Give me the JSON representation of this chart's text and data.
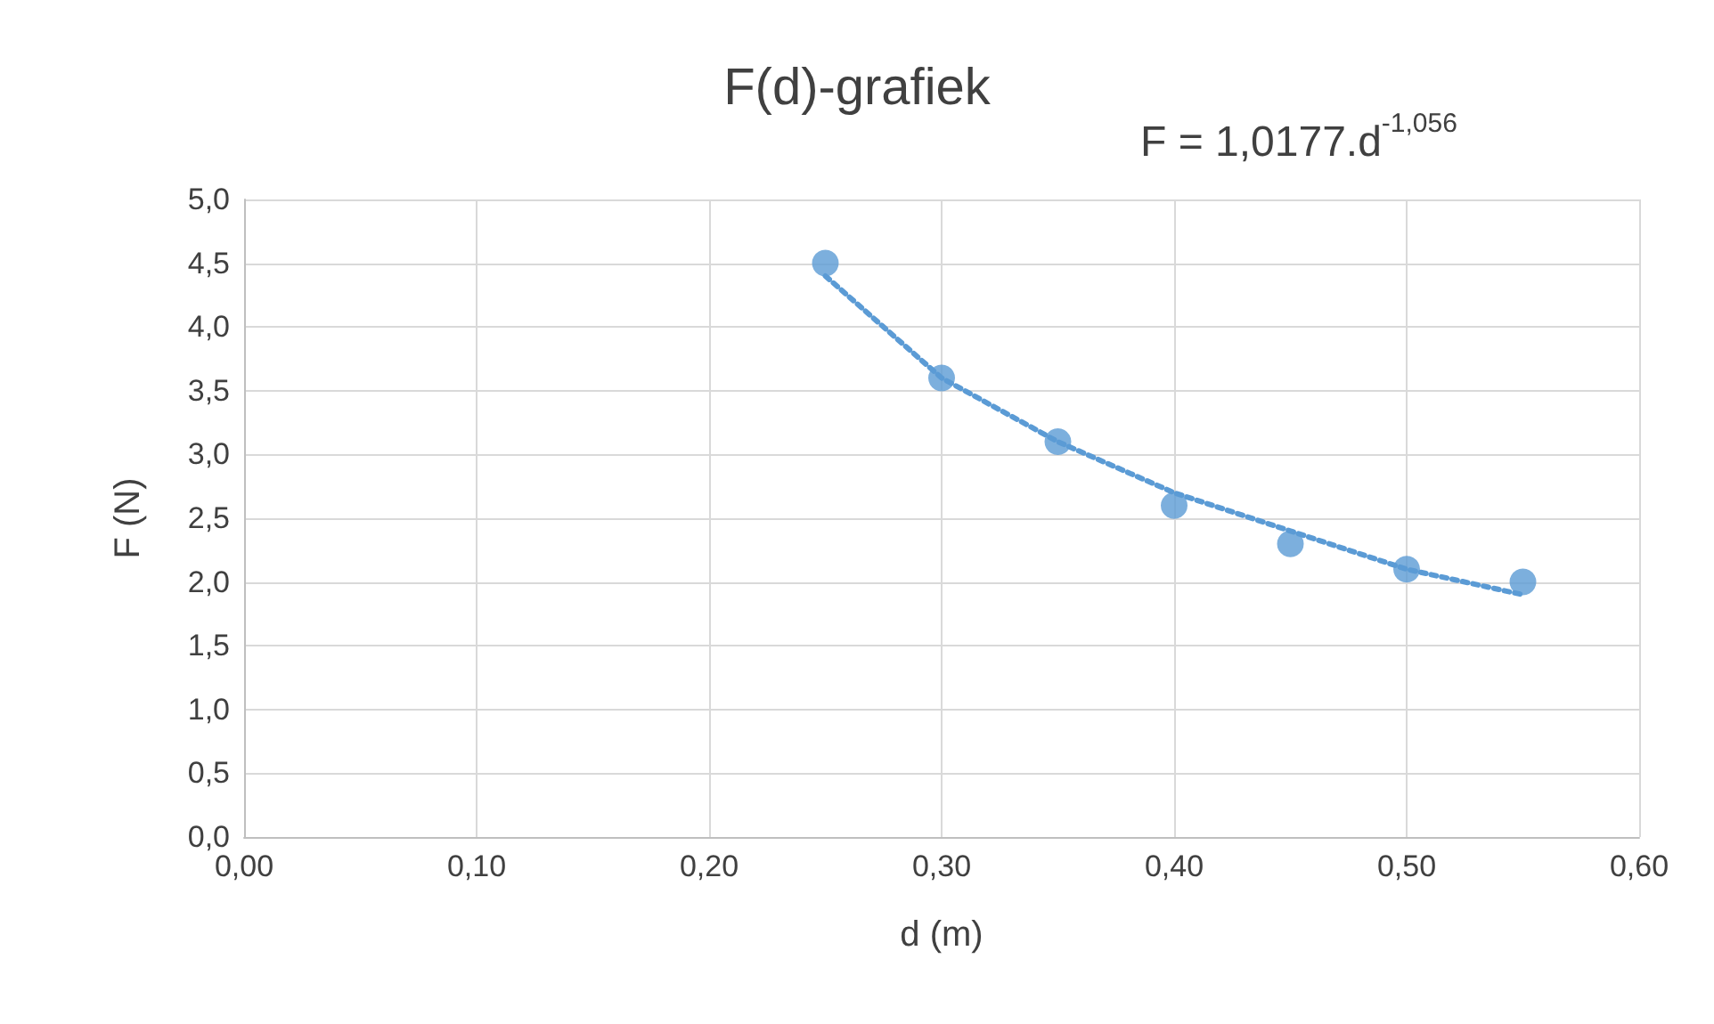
{
  "chart_data": {
    "type": "scatter",
    "title": "F(d)-grafiek",
    "xlabel": "d (m)",
    "ylabel": "F (N)",
    "annotations": [
      "F = 1,0177.d$^{-1,056}$"
    ],
    "x": [
      0.25,
      0.3,
      0.35,
      0.4,
      0.45,
      0.5,
      0.55
    ],
    "series": [
      {
        "color": "#5b9bd5",
        "marker": "circle",
        "values": [
          4.5,
          3.6,
          3.1,
          2.6,
          2.3,
          2.1,
          2.0
        ]
      },
      {
        "type": "line",
        "color": "#5b9bd5",
        "marker": "none",
        "line_style": "dotted",
        "x": [
          0.25,
          0.3,
          0.35,
          0.4,
          0.45,
          0.5,
          0.55
        ],
        "values": [
          4.4,
          3.6,
          3.1,
          2.7,
          2.4,
          2.1,
          1.9
        ]
      }
    ],
    "xlim": [
      0,
      0.6
    ],
    "xticks": [
      {
        "value": 0,
        "label": "0,00"
      },
      {
        "value": 0.1,
        "label": "0,10"
      },
      {
        "value": 0.2,
        "label": "0,20"
      },
      {
        "value": 0.3,
        "label": "0,30"
      },
      {
        "value": 0.4,
        "label": "0,40"
      },
      {
        "value": 0.5,
        "label": "0,50"
      },
      {
        "value": 0.6,
        "label": "0,60"
      }
    ],
    "ylim": [
      0,
      5
    ],
    "yticks": [
      {
        "value": 0,
        "label": "0,0"
      },
      {
        "value": 0.5,
        "label": "0,5"
      },
      {
        "value": 1,
        "label": "1,0"
      },
      {
        "value": 1.5,
        "label": "1,5"
      },
      {
        "value": 2,
        "label": "2,0"
      },
      {
        "value": 2.5,
        "label": "2,5"
      },
      {
        "value": 3,
        "label": "3,0"
      },
      {
        "value": 3.5,
        "label": "3,5"
      },
      {
        "value": 4,
        "label": "4,0"
      },
      {
        "value": 4.5,
        "label": "4,5"
      },
      {
        "value": 5,
        "label": "5,0"
      }
    ],
    "grid": true
  }
}
